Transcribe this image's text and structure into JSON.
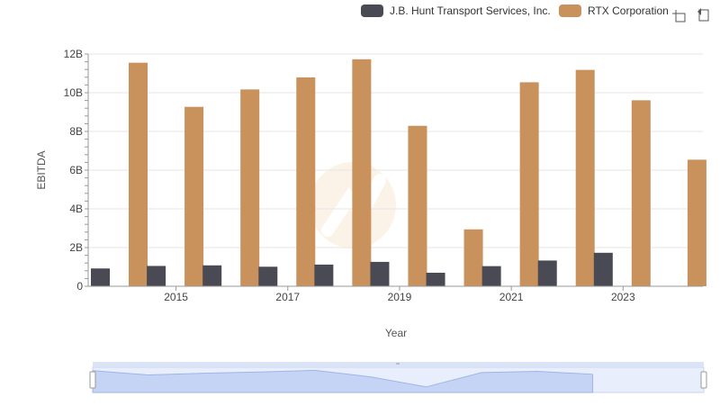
{
  "chart_data": {
    "type": "bar",
    "xlabel": "Year",
    "ylabel": "EBITDA",
    "categories": [
      "2014",
      "2015",
      "2016",
      "2017",
      "2018",
      "2019",
      "2020",
      "2021",
      "2022",
      "2023",
      "2024"
    ],
    "x_tick_labels": [
      "2015",
      "2017",
      "2019",
      "2021",
      "2023"
    ],
    "y_tick_labels": [
      "0",
      "2B",
      "4B",
      "6B",
      "8B",
      "10B",
      "12B"
    ],
    "ylim": [
      0,
      12000000000
    ],
    "series": [
      {
        "name": "J.B. Hunt Transport Services, Inc.",
        "color": "#4a4a55",
        "values": [
          920000000,
          1050000000,
          1080000000,
          1010000000,
          1120000000,
          1260000000,
          700000000,
          1040000000,
          1330000000,
          1730000000,
          null
        ]
      },
      {
        "name": "RTX Corporation",
        "color": "#c9915c",
        "values": [
          11550000000,
          9270000000,
          10170000000,
          10790000000,
          11730000000,
          8290000000,
          2940000000,
          10540000000,
          11180000000,
          9610000000,
          6540000000
        ]
      }
    ],
    "legend_position": "top-right",
    "grid": true
  },
  "toolbar": {
    "zoom_icon": "zoom-icon",
    "reset_icon": "reset-zoom-icon"
  },
  "watermark": "logo-watermark"
}
